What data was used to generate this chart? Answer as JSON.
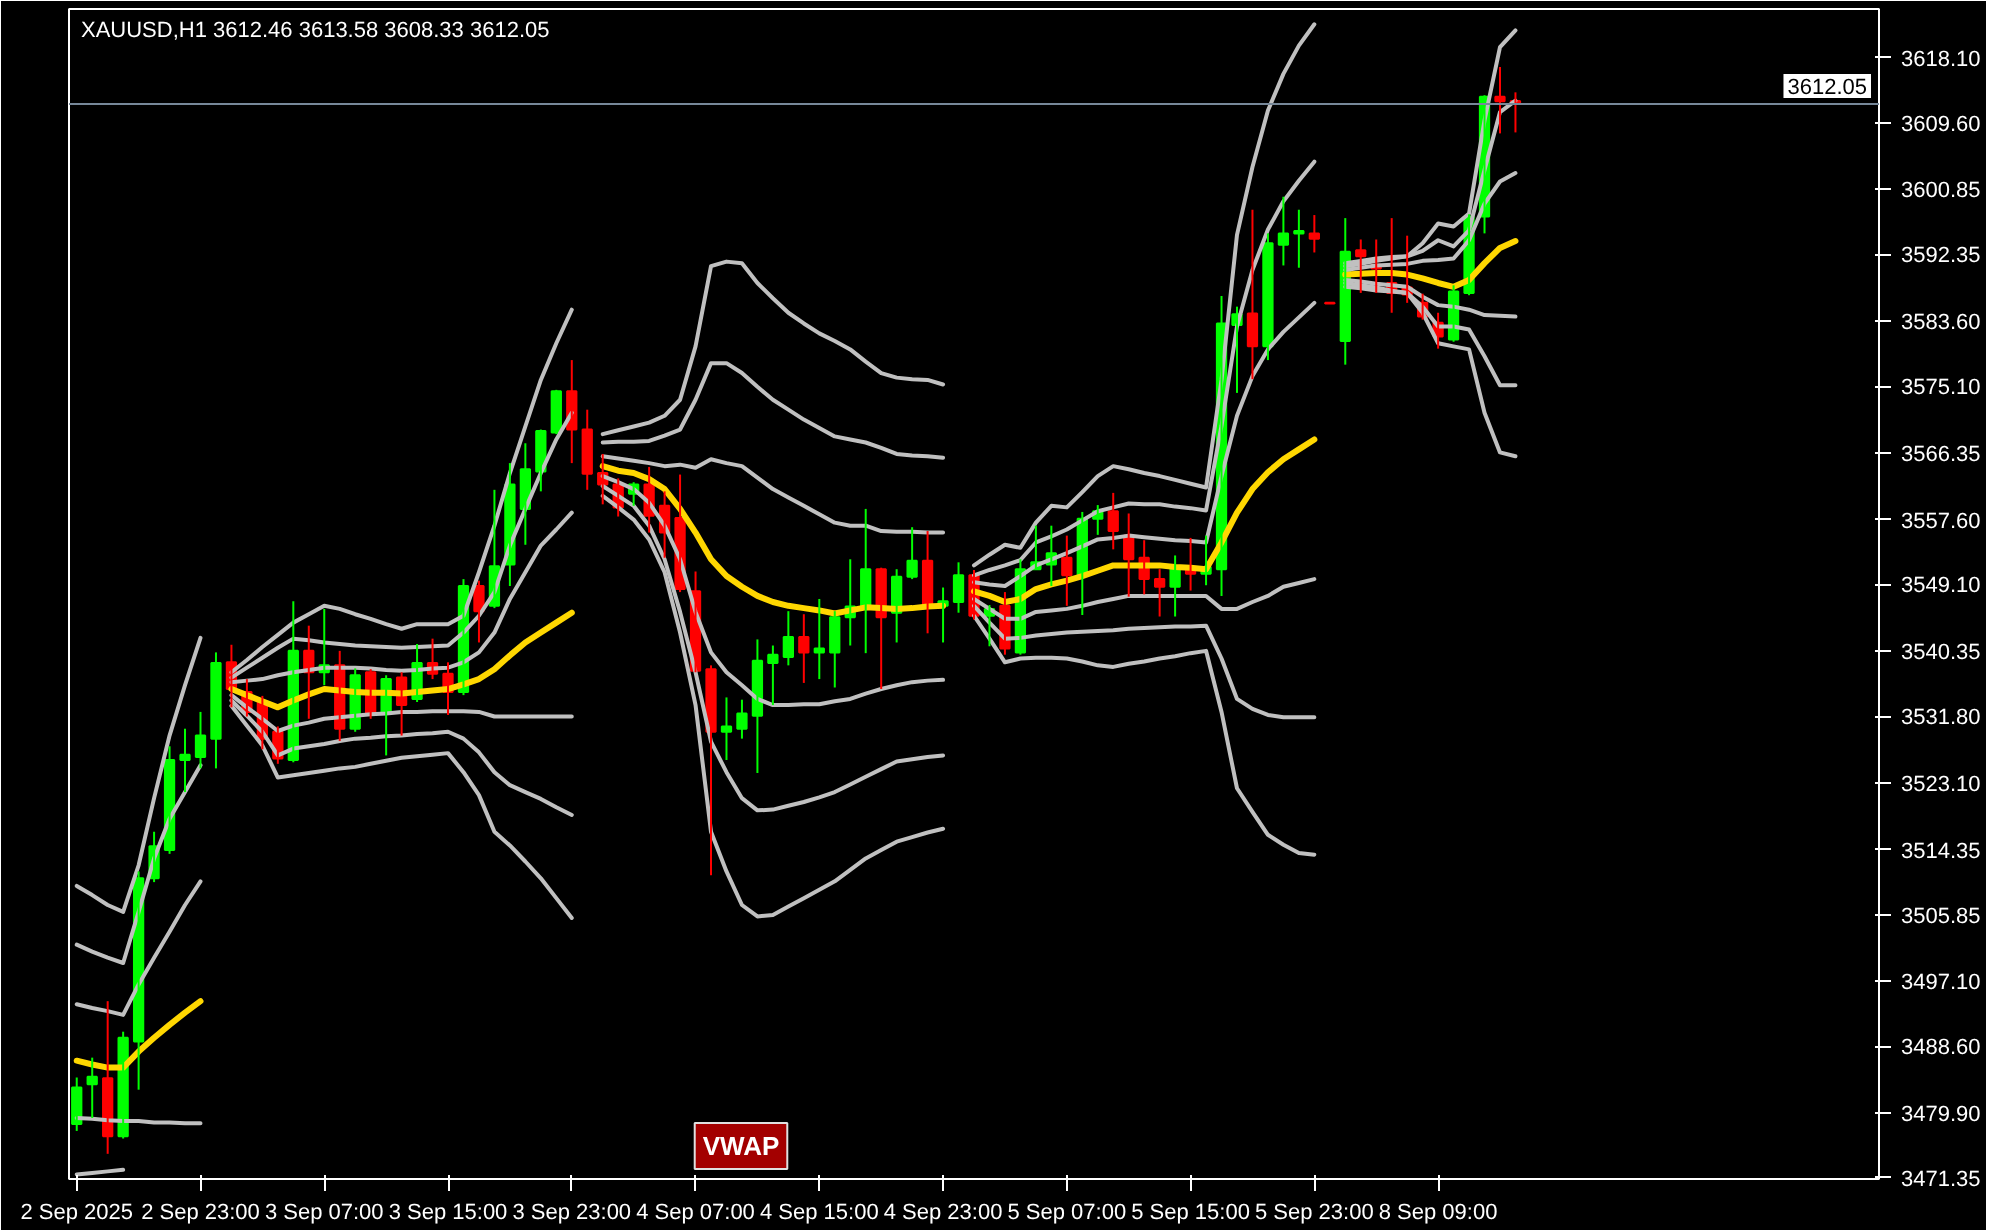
{
  "chart_data": {
    "type": "candlestick",
    "title": "XAUUSD,H1  3612.46 3613.58 3608.33 3612.05",
    "categories": [
      "2 Sep 2025",
      null,
      null,
      null,
      null,
      null,
      null,
      null,
      "2 Sep 23:00",
      null,
      null,
      null,
      null,
      null,
      null,
      null,
      "3 Sep 07:00",
      null,
      null,
      null,
      null,
      null,
      null,
      null,
      "3 Sep 15:00",
      null,
      null,
      null,
      null,
      null,
      null,
      null,
      "3 Sep 23:00",
      null,
      null,
      null,
      null,
      null,
      null,
      null,
      "4 Sep 07:00",
      null,
      null,
      null,
      null,
      null,
      null,
      null,
      "4 Sep 15:00",
      null,
      null,
      null,
      null,
      null,
      null,
      null,
      "4 Sep 23:00",
      null,
      null,
      null,
      null,
      null,
      null,
      null,
      "5 Sep 07:00",
      null,
      null,
      null,
      null,
      null,
      null,
      null,
      "5 Sep 15:00",
      null,
      null,
      null,
      null,
      null,
      null,
      null,
      "5 Sep 23:00",
      null,
      null,
      null,
      null,
      null,
      null,
      null,
      "8 Sep 09:00",
      null,
      null,
      null,
      null,
      null,
      null,
      null,
      null,
      null,
      null,
      null,
      null,
      null,
      null,
      null,
      null,
      null,
      null,
      null,
      null,
      null,
      null,
      null,
      null,
      null,
      null,
      null,
      null
    ],
    "ohlc": [
      [
        3478.4,
        3484.5,
        3477.5,
        3483.2
      ],
      [
        3483.6,
        3487.1,
        3479.2,
        3484.6
      ],
      [
        3484.4,
        3494.5,
        3474.5,
        3476.8
      ],
      [
        3476.8,
        3490.5,
        3476.5,
        3489.7
      ],
      [
        3489.2,
        3511.5,
        3482.9,
        3510.6
      ],
      [
        3510.6,
        3516.7,
        3510.1,
        3514.8
      ],
      [
        3514.3,
        3527.9,
        3513.8,
        3526.1
      ],
      [
        3526.1,
        3530.2,
        3521.9,
        3526.8
      ],
      [
        3526.5,
        3532.4,
        3525.0,
        3529.3
      ],
      [
        3528.9,
        3540.2,
        3525.0,
        3538.8
      ],
      [
        3538.9,
        3541.2,
        3533.0,
        3535.4
      ],
      [
        3535.0,
        3536.7,
        3531.8,
        3532.4
      ],
      [
        3533.7,
        3534.5,
        3527.5,
        3528.9
      ],
      [
        3529.8,
        3530.5,
        3525.6,
        3526.3
      ],
      [
        3526.1,
        3546.9,
        3525.8,
        3540.4
      ],
      [
        3540.4,
        3543.7,
        3531.5,
        3537.6
      ],
      [
        3537.6,
        3545.9,
        3535.9,
        3538.5
      ],
      [
        3538.5,
        3540.4,
        3528.6,
        3530.2
      ],
      [
        3530.2,
        3538.1,
        3529.8,
        3537.2
      ],
      [
        3537.6,
        3538.0,
        3531.5,
        3532.2
      ],
      [
        3532.2,
        3537.2,
        3526.7,
        3536.7
      ],
      [
        3536.9,
        3537.6,
        3529.3,
        3533.3
      ],
      [
        3534.1,
        3541.3,
        3533.7,
        3538.8
      ],
      [
        3538.8,
        3542.0,
        3536.7,
        3537.4
      ],
      [
        3537.4,
        3538.9,
        3532.0,
        3535.0
      ],
      [
        3535.0,
        3549.8,
        3534.6,
        3548.9
      ],
      [
        3548.9,
        3549.6,
        3541.5,
        3545.6
      ],
      [
        3546.3,
        3561.5,
        3546.0,
        3551.5
      ],
      [
        3551.7,
        3565.0,
        3548.9,
        3562.2
      ],
      [
        3559.0,
        3567.6,
        3554.3,
        3564.2
      ],
      [
        3563.9,
        3569.4,
        3561.3,
        3569.2
      ],
      [
        3569.0,
        3574.6,
        3568.8,
        3574.4
      ],
      [
        3574.4,
        3578.5,
        3565.0,
        3569.4
      ],
      [
        3569.4,
        3572.0,
        3561.5,
        3563.6
      ],
      [
        3563.7,
        3566.2,
        3559.6,
        3562.2
      ],
      [
        3562.2,
        3563.0,
        3558.0,
        3559.2
      ],
      [
        3561.0,
        3562.5,
        3559.4,
        3562.2
      ],
      [
        3562.2,
        3564.5,
        3555.9,
        3558.1
      ],
      [
        3559.4,
        3561.3,
        3552.6,
        3555.9
      ],
      [
        3557.8,
        3563.5,
        3548.1,
        3548.5
      ],
      [
        3548.2,
        3550.8,
        3537.6,
        3537.8
      ],
      [
        3538.0,
        3538.5,
        3511.0,
        3529.8
      ],
      [
        3529.8,
        3534.3,
        3526.1,
        3530.5
      ],
      [
        3530.2,
        3534.0,
        3528.9,
        3532.2
      ],
      [
        3531.9,
        3541.9,
        3524.4,
        3539.1
      ],
      [
        3538.8,
        3541.1,
        3533.3,
        3539.9
      ],
      [
        3539.6,
        3545.6,
        3538.5,
        3542.2
      ],
      [
        3542.2,
        3545.2,
        3536.2,
        3540.2
      ],
      [
        3540.2,
        3547.2,
        3536.7,
        3540.7
      ],
      [
        3540.2,
        3545.6,
        3535.6,
        3544.8
      ],
      [
        3544.8,
        3552.4,
        3541.1,
        3546.2
      ],
      [
        3546.2,
        3559.0,
        3540.1,
        3551.1
      ],
      [
        3551.1,
        3551.3,
        3535.4,
        3544.8
      ],
      [
        3545.4,
        3551.1,
        3541.5,
        3550.1
      ],
      [
        3550.1,
        3556.6,
        3549.8,
        3552.2
      ],
      [
        3552.2,
        3556.1,
        3542.7,
        3546.3
      ],
      [
        3546.3,
        3548.7,
        3541.5,
        3546.9
      ],
      [
        3546.8,
        3552.0,
        3545.4,
        3550.3
      ],
      [
        3550.3,
        3551.0,
        3544.5,
        3545.0
      ],
      [
        3545.0,
        3546.4,
        3541.0,
        3545.9
      ],
      [
        3546.3,
        3548.1,
        3539.9,
        3540.7
      ],
      [
        3540.2,
        3552.4,
        3539.9,
        3551.1
      ],
      [
        3551.1,
        3556.8,
        3551.0,
        3552.0
      ],
      [
        3551.7,
        3556.8,
        3548.9,
        3553.2
      ],
      [
        3552.6,
        3555.5,
        3546.3,
        3550.3
      ],
      [
        3550.3,
        3558.6,
        3545.1,
        3557.7
      ],
      [
        3557.7,
        3559.5,
        3555.6,
        3558.7
      ],
      [
        3558.7,
        3561.1,
        3553.7,
        3556.1
      ],
      [
        3555.5,
        3558.4,
        3547.5,
        3552.4
      ],
      [
        3552.6,
        3554.9,
        3547.8,
        3549.8
      ],
      [
        3549.8,
        3551.1,
        3544.9,
        3548.8
      ],
      [
        3548.8,
        3552.9,
        3544.9,
        3551.4
      ],
      [
        3551.4,
        3555.2,
        3548.3,
        3550.5
      ],
      [
        3550.5,
        3555.5,
        3549.0,
        3551.4
      ],
      [
        3551.1,
        3586.9,
        3547.6,
        3583.3
      ],
      [
        3583.1,
        3585.5,
        3574.2,
        3584.5
      ],
      [
        3584.6,
        3598.2,
        3576.0,
        3580.3
      ],
      [
        3580.3,
        3595.1,
        3578.5,
        3593.8
      ],
      [
        3593.6,
        3599.9,
        3590.9,
        3595.1
      ],
      [
        3595.1,
        3598.2,
        3590.6,
        3595.4
      ],
      [
        3595.1,
        3597.5,
        3592.6,
        3594.4
      ],
      [
        3586.0,
        3586.0,
        3585.9,
        3585.9
      ],
      [
        3581.0,
        3597.1,
        3577.9,
        3592.7
      ],
      [
        3592.9,
        3594.3,
        3587.3,
        3592.1
      ],
      [
        3591.0,
        3594.3,
        3587.3,
        3590.5
      ],
      [
        3588.6,
        3597.1,
        3584.7,
        3587.3
      ],
      [
        3588.0,
        3594.8,
        3586.0,
        3587.1
      ],
      [
        3586.0,
        3587.2,
        3583.8,
        3584.2
      ],
      [
        3583.4,
        3584.7,
        3580.0,
        3581.6
      ],
      [
        3581.2,
        3588.3,
        3580.9,
        3587.5
      ],
      [
        3587.3,
        3597.6,
        3587.0,
        3597.3
      ],
      [
        3597.3,
        3613.2,
        3595.1,
        3613.0
      ],
      [
        3613.0,
        3616.9,
        3608.2,
        3612.4
      ],
      [
        3612.46,
        3613.58,
        3608.33,
        3612.05
      ],
      null,
      null,
      null,
      null,
      null,
      null,
      null,
      null,
      null,
      null,
      null,
      null,
      null,
      null,
      null,
      null,
      null,
      null,
      null,
      null,
      null,
      null,
      null
    ],
    "colors": [
      "#00ff00",
      "#00ff00",
      "#ff0000",
      "#00ff00",
      "#00ff00",
      "#00ff00",
      "#00ff00",
      "#00ff00",
      "#00ff00",
      "#00ff00",
      "#ff0000",
      "#ff0000",
      "#ff0000",
      "#ff0000",
      "#00ff00",
      "#ff0000",
      "#00ff00",
      "#ff0000",
      "#00ff00",
      "#ff0000",
      "#00ff00",
      "#ff0000",
      "#00ff00",
      "#ff0000",
      "#ff0000",
      "#00ff00",
      "#ff0000",
      "#00ff00",
      "#00ff00",
      "#00ff00",
      "#00ff00",
      "#00ff00",
      "#ff0000",
      "#ff0000",
      "#ff0000",
      "#ff0000",
      "#00ff00",
      "#ff0000",
      "#ff0000",
      "#ff0000",
      "#ff0000",
      "#ff0000",
      "#00ff00",
      "#00ff00",
      "#00ff00",
      "#00ff00",
      "#00ff00",
      "#ff0000",
      "#00ff00",
      "#00ff00",
      "#00ff00",
      "#00ff00",
      "#ff0000",
      "#00ff00",
      "#00ff00",
      "#ff0000",
      "#00ff00",
      "#00ff00",
      "#ff0000",
      "#00ff00",
      "#ff0000",
      "#00ff00",
      "#00ff00",
      "#00ff00",
      "#ff0000",
      "#00ff00",
      "#00ff00",
      "#ff0000",
      "#ff0000",
      "#ff0000",
      "#ff0000",
      "#00ff00",
      "#ff0000",
      "#00ff00",
      "#00ff00",
      "#00ff00",
      "#ff0000",
      "#00ff00",
      "#00ff00",
      "#00ff00",
      "#ff0000",
      "#ff0000",
      "#00ff00",
      "#ff0000",
      "#ff0000",
      "#ff0000",
      "#ff0000",
      "#ff0000",
      "#ff0000",
      "#00ff00",
      "#00ff00",
      "#00ff00",
      "#ff0000",
      "#ff0000",
      null,
      null,
      null,
      null,
      null,
      null,
      null,
      null,
      null,
      null,
      null,
      null,
      null,
      null,
      null,
      null,
      null,
      null,
      null,
      null,
      null,
      null,
      null
    ],
    "series": [
      {
        "type": "line",
        "color": "#ffd700",
        "values": [
          3486.7,
          3486.2,
          3485.8,
          3485.8,
          3487.9,
          3489.7,
          3491.4,
          3493.0,
          3494.5,
          null,
          3535.4,
          3534.6,
          3533.8,
          3533.0,
          3533.9,
          3534.7,
          3535.4,
          3535.2,
          3535.0,
          3534.9,
          3534.9,
          3534.8,
          3535.0,
          3535.2,
          3535.4,
          3536.0,
          3536.7,
          3538.0,
          3539.8,
          3541.5,
          3542.8,
          3544.1,
          3545.4,
          null,
          3564.6,
          3564.0,
          3563.7,
          3562.9,
          3561.6,
          3559.0,
          3555.9,
          3552.4,
          3550.2,
          3548.8,
          3547.6,
          3546.8,
          3546.3,
          3546.0,
          3545.7,
          3545.3,
          3545.7,
          3546.1,
          3546.0,
          3545.9,
          3546.0,
          3546.2,
          3546.3,
          null,
          3548.2,
          3547.6,
          3546.8,
          3547.2,
          3548.5,
          3549.1,
          3549.6,
          3550.2,
          3550.9,
          3551.6,
          3551.6,
          3551.6,
          3551.6,
          3551.4,
          3551.3,
          3551.1,
          3554.6,
          3558.5,
          3561.6,
          3563.8,
          3565.5,
          3566.8,
          3568.1,
          null,
          3589.7,
          3589.8,
          3589.9,
          3589.9,
          3589.7,
          3589.2,
          3588.6,
          3588.1,
          3589.0,
          3591.2,
          3593.2,
          3594.1,
          null,
          null,
          null,
          null,
          null,
          null,
          null,
          null,
          null,
          null,
          null,
          null,
          null,
          null,
          null,
          null,
          null,
          null,
          null,
          null,
          null,
          null,
          null
        ]
      },
      {
        "type": "line",
        "color": "#c0c0c0",
        "values": [
          3494.1,
          3493.6,
          3493.2,
          3492.7,
          3496.7,
          3500.2,
          3503.6,
          3507.1,
          3510.2,
          null,
          3536.3,
          3536.5,
          3536.7,
          3537.2,
          3537.6,
          3537.9,
          3538.2,
          3538.2,
          3538.2,
          3538.1,
          3537.9,
          3537.8,
          3537.9,
          3538.1,
          3538.2,
          3538.9,
          3540.2,
          3542.8,
          3547.2,
          3550.7,
          3554.2,
          3556.3,
          3558.5,
          null,
          3565.9,
          3565.6,
          3565.3,
          3565.0,
          3564.6,
          3564.8,
          3564.4,
          3565.5,
          3565.0,
          3564.6,
          3563.1,
          3561.6,
          3560.5,
          3559.4,
          3558.3,
          3557.2,
          3556.8,
          3556.8,
          3556.1,
          3556.0,
          3556.0,
          3555.9,
          3555.9,
          null,
          3549.4,
          3549.1,
          3548.9,
          3550.2,
          3551.6,
          3552.4,
          3553.2,
          3554.1,
          3555.0,
          3555.2,
          3555.5,
          3555.3,
          3555.1,
          3554.9,
          3554.8,
          3554.6,
          3563.3,
          3571.2,
          3576.4,
          3579.9,
          3582.2,
          3584.1,
          3586.0,
          null,
          3590.3,
          3590.6,
          3590.9,
          3591.0,
          3591.1,
          3591.5,
          3591.6,
          3591.8,
          3594.2,
          3599.0,
          3601.9,
          3603.0,
          null,
          null,
          null,
          null,
          null,
          null,
          null,
          null,
          null,
          null,
          null,
          null,
          null,
          null,
          null,
          null,
          null,
          null,
          null,
          null,
          null,
          null,
          null
        ]
      },
      {
        "type": "line",
        "color": "#c0c0c0",
        "values": [
          3501.9,
          3501.0,
          3500.2,
          3499.5,
          3506.2,
          3513.2,
          3518.4,
          3521.9,
          3525.4,
          null,
          3536.9,
          3538.2,
          3539.5,
          3540.8,
          3542.0,
          3541.8,
          3541.5,
          3541.3,
          3541.1,
          3541.0,
          3540.9,
          3540.8,
          3540.9,
          3541.0,
          3541.1,
          3542.8,
          3545.0,
          3548.1,
          3554.2,
          3559.0,
          3563.7,
          3568.1,
          3571.6,
          null,
          3567.7,
          3567.8,
          3567.8,
          3567.9,
          3568.6,
          3569.4,
          3573.3,
          3578.1,
          3578.1,
          3576.8,
          3575.0,
          3573.3,
          3572.0,
          3570.7,
          3569.6,
          3568.5,
          3568.1,
          3567.7,
          3567.0,
          3566.2,
          3566.0,
          3565.9,
          3565.7,
          null,
          3550.3,
          3551.0,
          3551.6,
          3552.3,
          3554.6,
          3555.4,
          3556.3,
          3557.5,
          3558.7,
          3559.2,
          3559.7,
          3559.6,
          3559.6,
          3559.3,
          3559.1,
          3558.8,
          3569.9,
          3582.9,
          3590.3,
          3595.6,
          3599.3,
          3602.0,
          3604.5,
          null,
          3590.8,
          3591.1,
          3591.5,
          3591.8,
          3592.1,
          3592.8,
          3594.2,
          3593.4,
          3595.5,
          3603.4,
          3611.0,
          3612.5,
          null,
          null,
          null,
          null,
          null,
          null,
          null,
          null,
          null,
          null,
          null,
          null,
          null,
          null,
          null,
          null,
          null,
          null,
          null,
          null,
          null,
          null,
          null
        ]
      },
      {
        "type": "line",
        "color": "#c0c0c0",
        "values": [
          3509.6,
          3508.4,
          3507.1,
          3506.2,
          3512.3,
          3521.1,
          3529.3,
          3535.9,
          3542.1,
          null,
          3537.6,
          3539.2,
          3540.9,
          3542.5,
          3544.1,
          3545.2,
          3546.3,
          3545.9,
          3545.2,
          3544.6,
          3543.9,
          3543.3,
          3543.9,
          3543.9,
          3543.9,
          3545.0,
          3550.7,
          3556.8,
          3563.7,
          3569.8,
          3575.9,
          3580.7,
          3585.1,
          null,
          3568.8,
          3569.3,
          3569.8,
          3570.3,
          3571.2,
          3573.3,
          3580.3,
          3590.8,
          3591.4,
          3591.2,
          3588.6,
          3586.6,
          3584.7,
          3583.3,
          3582.0,
          3581.0,
          3579.9,
          3578.3,
          3576.8,
          3576.2,
          3576.0,
          3575.9,
          3575.3,
          null,
          3551.6,
          3553.0,
          3554.3,
          3553.9,
          3557.2,
          3559.4,
          3559.2,
          3561.2,
          3563.3,
          3564.6,
          3564.2,
          3563.7,
          3563.3,
          3562.8,
          3562.3,
          3561.8,
          3575.9,
          3594.9,
          3603.8,
          3611.2,
          3616.0,
          3619.7,
          3622.5,
          null,
          3591.2,
          3591.5,
          3591.8,
          3592.0,
          3592.1,
          3593.8,
          3596.4,
          3596.0,
          3597.7,
          3609.9,
          3619.5,
          3621.7,
          null,
          null,
          null,
          null,
          null,
          null,
          null,
          null,
          null,
          null,
          null,
          null,
          null,
          null,
          null,
          null,
          null,
          null,
          null,
          null,
          null,
          null,
          null
        ]
      },
      {
        "type": "line",
        "color": "#c0c0c0",
        "values": [
          3479.2,
          3479.1,
          3478.9,
          3478.8,
          3478.8,
          3478.6,
          3478.6,
          3478.5,
          3478.5,
          null,
          3534.6,
          3533.0,
          3531.5,
          3529.9,
          3530.6,
          3531.0,
          3531.5,
          3531.7,
          3531.9,
          3532.1,
          3532.2,
          3532.4,
          3532.4,
          3532.5,
          3532.5,
          3532.5,
          3532.4,
          3531.8,
          3531.8,
          3531.8,
          3531.8,
          3531.8,
          3531.8,
          null,
          3563.3,
          3562.5,
          3561.6,
          3559.8,
          3556.8,
          3552.4,
          3545.5,
          3540.2,
          3537.6,
          3535.9,
          3534.1,
          3533.3,
          3533.3,
          3533.4,
          3533.4,
          3533.8,
          3534.1,
          3534.8,
          3535.4,
          3535.9,
          3536.3,
          3536.5,
          3536.6,
          null,
          3547.2,
          3545.9,
          3544.6,
          3544.6,
          3545.5,
          3545.7,
          3545.9,
          3546.3,
          3546.8,
          3547.2,
          3547.6,
          3547.6,
          3547.6,
          3547.6,
          3547.6,
          3547.6,
          3545.9,
          3545.9,
          3546.8,
          3547.6,
          3548.8,
          3549.3,
          3549.8,
          null,
          3589.0,
          3588.8,
          3588.5,
          3588.3,
          3588.1,
          3586.8,
          3585.7,
          3585.5,
          3585.1,
          3584.4,
          3584.3,
          3584.2,
          null,
          null,
          null,
          null,
          null,
          null,
          null,
          null,
          null,
          null,
          null,
          null,
          null,
          null,
          null,
          null,
          null,
          null,
          null,
          null,
          null,
          null,
          null
        ]
      },
      {
        "type": "line",
        "color": "#c0c0c0",
        "values": [
          3471.8,
          3472.0,
          3472.2,
          3472.4,
          null,
          null,
          null,
          null,
          null,
          null,
          3533.9,
          3531.9,
          3529.8,
          3526.7,
          3527.6,
          3527.9,
          3528.2,
          3528.6,
          3528.9,
          3529.0,
          3529.2,
          3529.3,
          3529.5,
          3529.6,
          3529.8,
          3528.9,
          3527.1,
          3524.5,
          3522.8,
          3521.9,
          3521.0,
          3519.9,
          3518.9,
          null,
          3562.0,
          3560.7,
          3559.4,
          3556.8,
          3552.4,
          3545.5,
          3537.6,
          3528.5,
          3524.5,
          3521.1,
          3519.5,
          3519.6,
          3520.1,
          3520.6,
          3521.2,
          3521.9,
          3522.9,
          3523.9,
          3524.9,
          3525.9,
          3526.2,
          3526.5,
          3526.7,
          null,
          3546.3,
          3544.1,
          3542.0,
          3542.1,
          3542.4,
          3542.6,
          3542.8,
          3542.9,
          3543.0,
          3543.1,
          3543.3,
          3543.4,
          3543.5,
          3543.6,
          3543.6,
          3543.7,
          3539.4,
          3534.1,
          3532.8,
          3532.0,
          3531.7,
          3531.7,
          3531.7,
          null,
          3588.6,
          3588.3,
          3588.0,
          3587.6,
          3587.3,
          3585.5,
          3582.9,
          3582.9,
          3582.5,
          3579.0,
          3575.2,
          3575.2,
          null,
          null,
          null,
          null,
          null,
          null,
          null,
          null,
          null,
          null,
          null,
          null,
          null,
          null,
          null,
          null,
          null,
          null,
          null,
          null,
          null,
          null,
          null
        ]
      },
      {
        "type": "line",
        "color": "#c0c0c0",
        "values": [
          null,
          null,
          null,
          null,
          null,
          null,
          null,
          null,
          null,
          null,
          3533.2,
          3530.6,
          3528.0,
          3523.8,
          3524.1,
          3524.4,
          3524.7,
          3525.0,
          3525.2,
          3525.6,
          3526.0,
          3526.4,
          3526.6,
          3526.8,
          3527.0,
          3524.5,
          3521.5,
          3516.7,
          3514.9,
          3512.8,
          3510.6,
          3508.0,
          3505.4,
          null,
          3560.7,
          3559.2,
          3557.6,
          3555.0,
          3550.7,
          3542.8,
          3533.3,
          3516.7,
          3511.5,
          3507.1,
          3505.6,
          3505.8,
          3506.9,
          3508.0,
          3509.1,
          3510.2,
          3511.7,
          3513.2,
          3514.3,
          3515.4,
          3516.0,
          3516.6,
          3517.1,
          null,
          3545.0,
          3542.0,
          3538.9,
          3539.4,
          3539.5,
          3539.5,
          3539.4,
          3539.0,
          3538.5,
          3538.3,
          3538.7,
          3539.0,
          3539.4,
          3539.7,
          3540.1,
          3540.4,
          3532.4,
          3522.4,
          3519.3,
          3516.3,
          3515.0,
          3513.9,
          3513.7,
          null,
          3588.1,
          3587.9,
          3587.6,
          3587.5,
          3587.3,
          3584.7,
          3580.7,
          3580.3,
          3579.9,
          3571.6,
          3566.4,
          3565.9,
          null,
          null,
          null,
          null,
          null,
          null,
          null,
          null,
          null,
          null,
          null,
          null,
          null,
          null,
          null,
          null,
          null,
          null,
          null,
          null,
          null,
          null,
          null
        ]
      }
    ],
    "ylim": [
      3471.2,
      3624.5
    ],
    "yticks": [
      {
        "value": 3471.35,
        "label": "3471.35"
      },
      {
        "value": 3479.9,
        "label": "3479.90"
      },
      {
        "value": 3488.6,
        "label": "3488.60"
      },
      {
        "value": 3497.1,
        "label": "3497.10"
      },
      {
        "value": 3505.85,
        "label": "3505.85"
      },
      {
        "value": 3514.35,
        "label": "3514.35"
      },
      {
        "value": 3523.1,
        "label": "3523.10"
      },
      {
        "value": 3531.8,
        "label": "3531.80"
      },
      {
        "value": 3540.35,
        "label": "3540.35"
      },
      {
        "value": 3549.1,
        "label": "3549.10"
      },
      {
        "value": 3557.6,
        "label": "3557.60"
      },
      {
        "value": 3566.35,
        "label": "3566.35"
      },
      {
        "value": 3575.1,
        "label": "3575.10"
      },
      {
        "value": 3583.6,
        "label": "3583.60"
      },
      {
        "value": 3592.35,
        "label": "3592.35"
      },
      {
        "value": 3600.85,
        "label": "3600.85"
      },
      {
        "value": 3609.6,
        "label": "3609.60"
      },
      {
        "value": 3618.1,
        "label": "3618.10"
      }
    ],
    "ref_lines": [
      {
        "axis": "y",
        "value": 3612.05,
        "label": "3612.05",
        "color": "#778899"
      }
    ],
    "annotations": [
      "VWAP"
    ],
    "grid": false,
    "line_style": "solid"
  }
}
